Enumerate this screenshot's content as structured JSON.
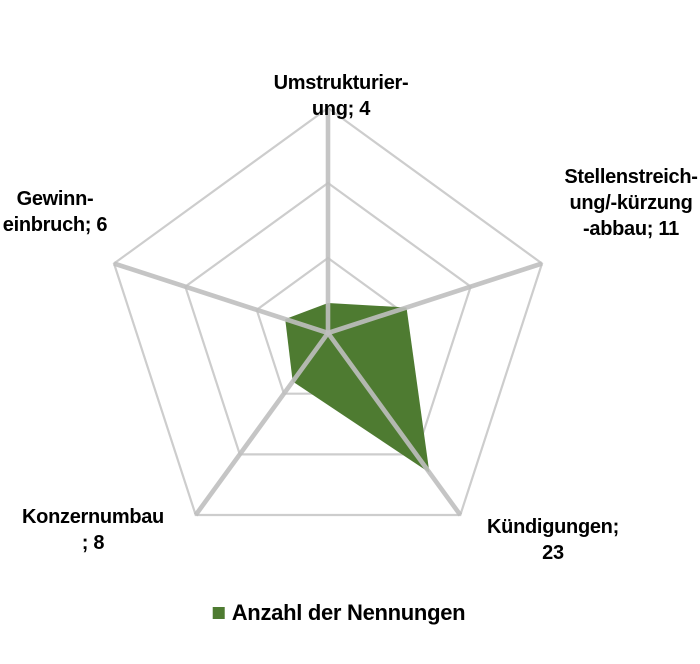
{
  "chart_data": {
    "type": "radar",
    "title": "",
    "categories": [
      {
        "name": "Umstrukturierung",
        "lines": [
          "Umstrukturier-",
          "ung; 4"
        ],
        "value": 4
      },
      {
        "name": "Stellenstreichung/-kürzung-abbau",
        "lines": [
          "Stellenstreich-",
          "ung/-kürzung",
          "-abbau; 11"
        ],
        "value": 11
      },
      {
        "name": "Kündigungen",
        "lines": [
          "Kündigungen;",
          "23"
        ],
        "value": 23
      },
      {
        "name": "Konzernumbau",
        "lines": [
          "Konzernumbau",
          "; 8"
        ],
        "value": 8
      },
      {
        "name": "Gewinneinbruch",
        "lines": [
          "Gewinn-",
          "einbruch; 6"
        ],
        "value": 6
      }
    ],
    "series": [
      {
        "name": "Anzahl der Nennungen",
        "values": [
          4,
          11,
          23,
          8,
          6
        ],
        "color": "#4e7b31"
      }
    ],
    "axis": {
      "min": 0,
      "max": 30,
      "ring_step": 10,
      "rings": 3
    },
    "grid": {
      "ring_color": "#cdcdcd",
      "axis_color": "#bfbfbf"
    },
    "legend": {
      "label": "Anzahl der Nennungen",
      "position": "bottom",
      "swatch_color": "#4e7b31"
    },
    "background_color": "#ffffff"
  }
}
